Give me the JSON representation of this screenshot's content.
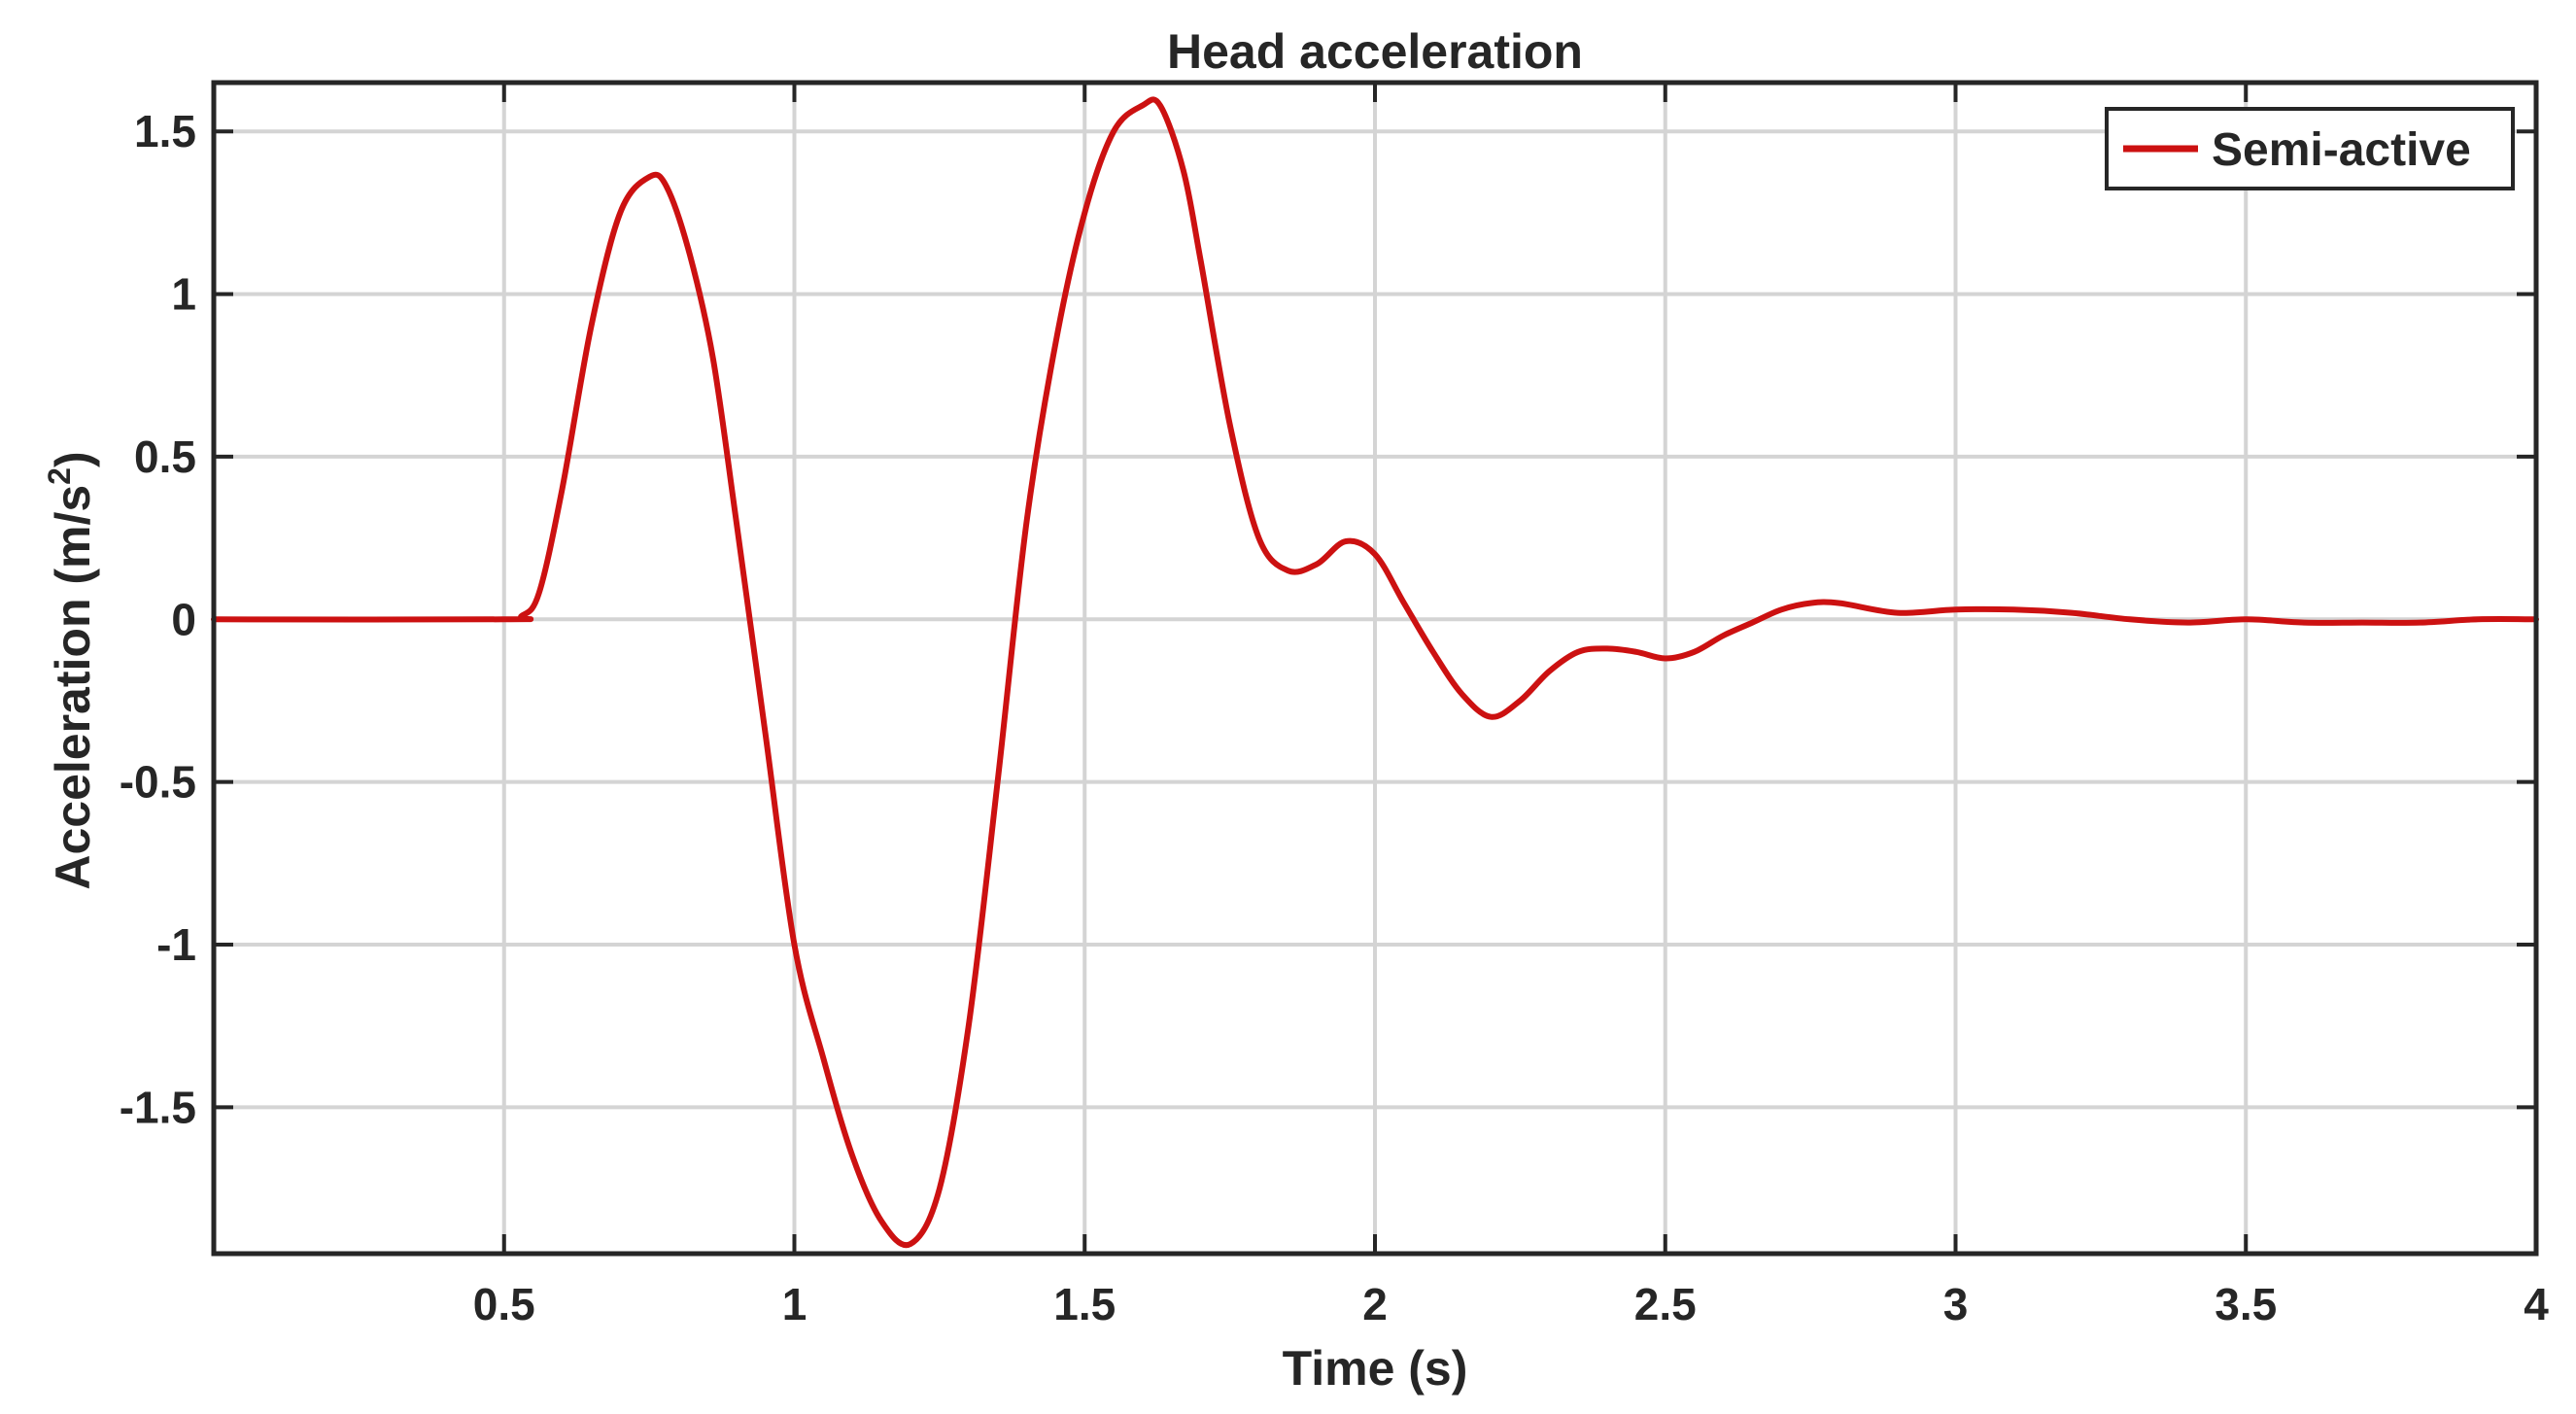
{
  "chart_data": {
    "type": "line",
    "title": "Head acceleration",
    "xlabel": "Time (s)",
    "ylabel": "Acceleration (m/s",
    "ylabel_superscript": "2",
    "ylabel_suffix": ")",
    "xlim": [
      0,
      4
    ],
    "ylim": [
      -1.95,
      1.65
    ],
    "grid": true,
    "legend_position": "top-right",
    "x_ticks": [
      {
        "value": 0.5,
        "label": "0.5"
      },
      {
        "value": 1,
        "label": "1"
      },
      {
        "value": 1.5,
        "label": "1.5"
      },
      {
        "value": 2,
        "label": "2"
      },
      {
        "value": 2.5,
        "label": "2.5"
      },
      {
        "value": 3,
        "label": "3"
      },
      {
        "value": 3.5,
        "label": "3.5"
      },
      {
        "value": 4,
        "label": "4"
      }
    ],
    "y_ticks": [
      {
        "value": 1.5,
        "label": "1.5"
      },
      {
        "value": 1,
        "label": "1"
      },
      {
        "value": 0.5,
        "label": "0.5"
      },
      {
        "value": 0,
        "label": "0"
      },
      {
        "value": -0.5,
        "label": "-0.5"
      },
      {
        "value": -1,
        "label": "-1"
      },
      {
        "value": -1.5,
        "label": "-1.5"
      }
    ],
    "series": [
      {
        "name": "Semi-active",
        "color": "#cc1111",
        "x": [
          0,
          0.5,
          0.53,
          0.56,
          0.6,
          0.65,
          0.7,
          0.75,
          0.78,
          0.82,
          0.86,
          0.9,
          0.95,
          1.0,
          1.05,
          1.1,
          1.15,
          1.2,
          1.25,
          1.3,
          1.35,
          1.4,
          1.45,
          1.5,
          1.55,
          1.6,
          1.63,
          1.67,
          1.7,
          1.75,
          1.8,
          1.85,
          1.9,
          1.95,
          2.0,
          2.05,
          2.1,
          2.15,
          2.2,
          2.25,
          2.3,
          2.35,
          2.4,
          2.45,
          2.5,
          2.55,
          2.6,
          2.65,
          2.7,
          2.75,
          2.8,
          2.9,
          3.0,
          3.1,
          3.2,
          3.3,
          3.4,
          3.5,
          3.6,
          3.7,
          3.8,
          3.9,
          4.0
        ],
        "y": [
          0,
          0,
          0.01,
          0.08,
          0.4,
          0.9,
          1.25,
          1.36,
          1.33,
          1.12,
          0.8,
          0.3,
          -0.35,
          -1.0,
          -1.35,
          -1.65,
          -1.85,
          -1.92,
          -1.75,
          -1.25,
          -0.5,
          0.3,
          0.85,
          1.25,
          1.5,
          1.58,
          1.58,
          1.38,
          1.1,
          0.6,
          0.25,
          0.15,
          0.17,
          0.24,
          0.2,
          0.05,
          -0.1,
          -0.23,
          -0.3,
          -0.25,
          -0.16,
          -0.1,
          -0.09,
          -0.1,
          -0.12,
          -0.1,
          -0.05,
          -0.01,
          0.03,
          0.05,
          0.05,
          0.02,
          0.03,
          0.03,
          0.02,
          0.0,
          -0.01,
          0.0,
          -0.01,
          -0.01,
          -0.01,
          0.0,
          0.0
        ]
      }
    ]
  }
}
